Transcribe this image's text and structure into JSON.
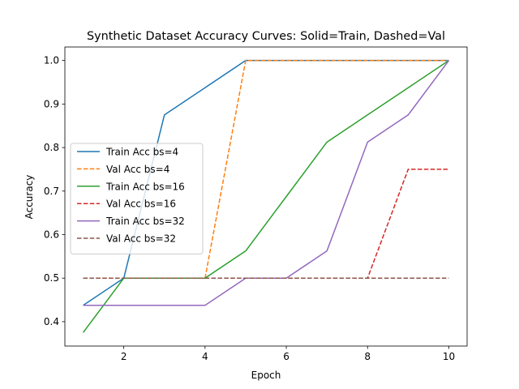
{
  "chart_data": {
    "type": "line",
    "title": "Synthetic Dataset Accuracy Curves: Solid=Train, Dashed=Val",
    "xlabel": "Epoch",
    "ylabel": "Accuracy",
    "xlim": [
      0.55,
      10.45
    ],
    "ylim": [
      0.344,
      1.031
    ],
    "xticks": [
      2,
      4,
      6,
      8,
      10
    ],
    "yticks": [
      0.4,
      0.5,
      0.6,
      0.7,
      0.8,
      0.9,
      1.0
    ],
    "grid": false,
    "legend_position": "center-left",
    "x": [
      1,
      2,
      3,
      4,
      5,
      6,
      7,
      8,
      9,
      10
    ],
    "series": [
      {
        "name": "Train Acc bs=4",
        "color": "#1f77b4",
        "style": "solid",
        "values": [
          0.4375,
          0.5,
          0.875,
          0.9375,
          1.0,
          1.0,
          1.0,
          1.0,
          1.0,
          1.0
        ]
      },
      {
        "name": "Val Acc bs=4",
        "color": "#ff7f0e",
        "style": "dashed",
        "values": [
          0.5,
          0.5,
          0.5,
          0.5,
          1.0,
          1.0,
          1.0,
          1.0,
          1.0,
          1.0
        ]
      },
      {
        "name": "Train Acc bs=16",
        "color": "#2ca02c",
        "style": "solid",
        "values": [
          0.375,
          0.5,
          0.5,
          0.5,
          0.5625,
          0.6875,
          0.8125,
          0.875,
          0.9375,
          1.0
        ]
      },
      {
        "name": "Val Acc bs=16",
        "color": "#d62728",
        "style": "dashed",
        "values": [
          0.5,
          0.5,
          0.5,
          0.5,
          0.5,
          0.5,
          0.5,
          0.5,
          0.75,
          0.75
        ]
      },
      {
        "name": "Train Acc bs=32",
        "color": "#9467bd",
        "style": "solid",
        "values": [
          0.4375,
          0.4375,
          0.4375,
          0.4375,
          0.5,
          0.5,
          0.5625,
          0.8125,
          0.875,
          1.0
        ]
      },
      {
        "name": "Val Acc bs=32",
        "color": "#8c564b",
        "style": "dashed",
        "values": [
          0.5,
          0.5,
          0.5,
          0.5,
          0.5,
          0.5,
          0.5,
          0.5,
          0.5,
          0.5
        ]
      }
    ]
  }
}
